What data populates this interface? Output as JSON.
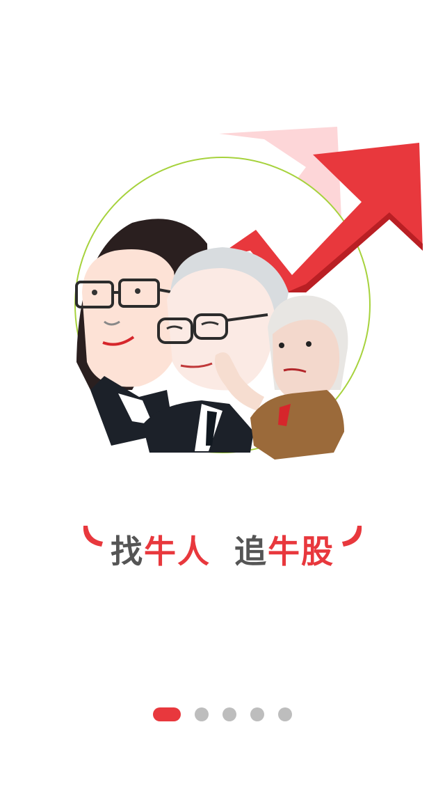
{
  "colors": {
    "accent_red": "#e8383d",
    "text_gray": "#555555",
    "dot_inactive": "#bdbdbd",
    "circle_green": "#a6d23c"
  },
  "slogan": {
    "part1_gray": "找",
    "part1_red": "牛人",
    "part2_gray": "追",
    "part2_red": "牛股"
  },
  "pager": {
    "total": 5,
    "active_index": 0
  },
  "illustration": {
    "icons": [
      "rising-arrow-icon",
      "investor-portraits"
    ]
  }
}
